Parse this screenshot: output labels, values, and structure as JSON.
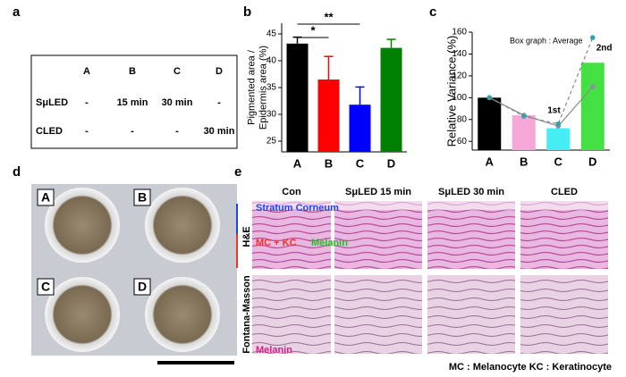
{
  "panel_labels": [
    "a",
    "b",
    "c",
    "d",
    "e"
  ],
  "table": {
    "columns": [
      "A",
      "B",
      "C",
      "D"
    ],
    "rows": [
      {
        "label": "SμLED",
        "cells": [
          "-",
          "15 min",
          "30 min",
          "-"
        ]
      },
      {
        "label": "CLED",
        "cells": [
          "-",
          "-",
          "-",
          "30 min"
        ]
      }
    ]
  },
  "chart_data": [
    {
      "type": "bar",
      "categories": [
        "A",
        "B",
        "C",
        "D"
      ],
      "values": [
        43.2,
        36.5,
        31.8,
        42.4
      ],
      "errors": [
        1.2,
        4.3,
        3.3,
        1.6
      ],
      "colors": [
        "#000000",
        "#ff0000",
        "#0000ff",
        "#008000"
      ],
      "ylim": [
        23,
        47
      ],
      "yticks": [
        25,
        30,
        35,
        40,
        45
      ],
      "y_label": [
        "Pigmented area /",
        "Epidermis area (%)"
      ],
      "significance": [
        "*",
        "**"
      ]
    },
    {
      "type": "bar",
      "categories": [
        "A",
        "B",
        "C",
        "D"
      ],
      "values": [
        100,
        84,
        72,
        132
      ],
      "colors": [
        "#000000",
        "#f7a8d8",
        "#44eef4",
        "#44e044"
      ],
      "ylim": [
        52,
        160
      ],
      "yticks": [
        60,
        80,
        100,
        120,
        140,
        160
      ],
      "y_label": [
        "Relative Variance (%)"
      ],
      "lines": [
        {
          "color": "#8a8a8a",
          "dashed": false,
          "values": [
            100,
            84,
            74,
            110
          ]
        },
        {
          "color": "#8a8a8a",
          "dashed": true,
          "values": [
            100,
            83,
            76,
            155
          ]
        }
      ],
      "annotations": [
        "Box graph : Average",
        "1st",
        "2nd"
      ]
    }
  ],
  "photos": {
    "labels": [
      "A",
      "B",
      "C",
      "D"
    ]
  },
  "histology": {
    "columns": [
      "Con",
      "SμLED 15 min",
      "SμLED 30 min",
      "CLED"
    ],
    "rows": [
      "H&E",
      "Fontana-Masson"
    ],
    "annotations": [
      "Stratum Corneum",
      "MC + KC",
      "Melanin",
      "Melanin"
    ],
    "footnote": "MC : Melanocyte KC : Keratinocyte"
  }
}
